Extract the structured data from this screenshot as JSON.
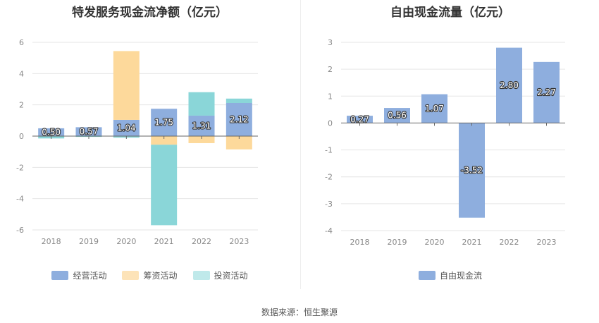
{
  "chart_data": [
    {
      "type": "bar",
      "stacked": true,
      "title": "特发服务现金流净额（亿元）",
      "categories": [
        "2018",
        "2019",
        "2020",
        "2021",
        "2022",
        "2023"
      ],
      "ylim": [
        -6,
        6
      ],
      "yticks": [
        -6,
        -4,
        -2,
        0,
        2,
        4,
        6
      ],
      "grid": true,
      "legend_position": "bottom",
      "series": [
        {
          "name": "经营活动",
          "color": "#8eaede",
          "values": [
            0.5,
            0.57,
            1.04,
            1.75,
            1.31,
            2.12
          ],
          "labels": [
            "0.50",
            "0.57",
            "1.04",
            "1.75",
            "1.31",
            "2.12"
          ]
        },
        {
          "name": "筹资活动",
          "color": "#fdd99b",
          "values": [
            0.0,
            0.0,
            4.4,
            -0.55,
            -0.45,
            -0.85
          ]
        },
        {
          "name": "投资活动",
          "color": "#8ad6d8",
          "values": [
            -0.15,
            -0.05,
            -0.1,
            -5.15,
            1.5,
            0.28
          ]
        }
      ],
      "legend": [
        {
          "name": "经营活动",
          "color": "#8eaede"
        },
        {
          "name": "筹资活动",
          "color": "#fde3b8"
        },
        {
          "name": "投资活动",
          "color": "#bfe9ea"
        }
      ]
    },
    {
      "type": "bar",
      "title": "自由现金流量（亿元）",
      "categories": [
        "2018",
        "2019",
        "2020",
        "2021",
        "2022",
        "2023"
      ],
      "ylim": [
        -4,
        3
      ],
      "yticks": [
        -4,
        -3,
        -2,
        -1,
        0,
        1,
        2,
        3
      ],
      "grid": true,
      "legend_position": "bottom",
      "series": [
        {
          "name": "自由现金流",
          "color": "#8eaede",
          "values": [
            0.27,
            0.56,
            1.07,
            -3.52,
            2.8,
            2.27
          ],
          "labels": [
            "0.27",
            "0.56",
            "1.07",
            "-3.52",
            "2.80",
            "2.27"
          ]
        }
      ],
      "legend": [
        {
          "name": "自由现金流",
          "color": "#8eaede"
        }
      ]
    }
  ],
  "footer": {
    "source": "数据来源：恒生聚源"
  }
}
